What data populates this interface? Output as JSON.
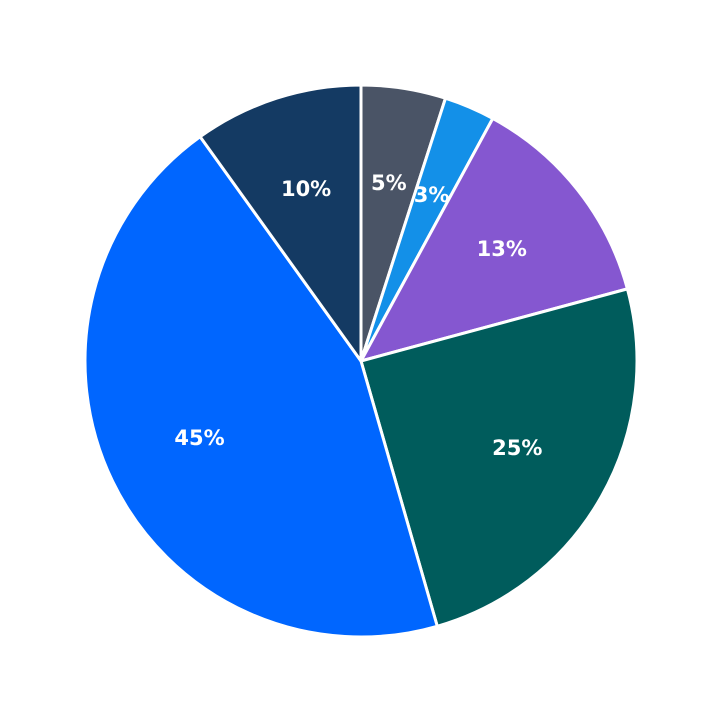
{
  "chart_data": {
    "type": "pie",
    "values": [
      5,
      3,
      13,
      25,
      45,
      10
    ],
    "value_labels": [
      "5%",
      "3%",
      "13%",
      "25%",
      "45%",
      "10%"
    ],
    "colors": [
      "#4a5466",
      "#1390e8",
      "#8557d0",
      "#005c5c",
      "#0066ff",
      "#143a63"
    ]
  }
}
